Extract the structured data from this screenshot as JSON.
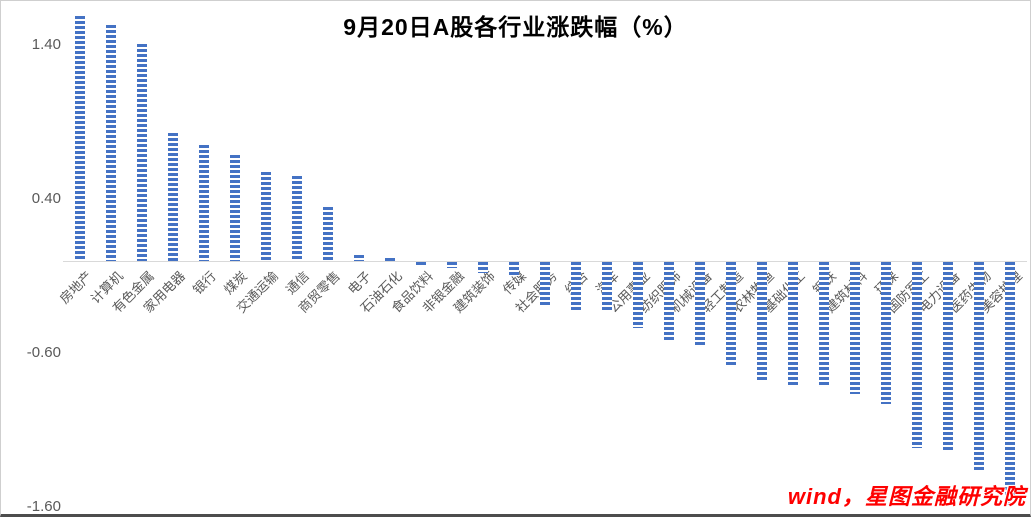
{
  "title": "9月20日A股各行业涨跌幅（%）",
  "watermark": {
    "text": "wind，星图金融研究院"
  },
  "colors": {
    "bar_blue": "#4472C4",
    "stripe_white": "#ffffff",
    "axis_gray": "#d9d9d9",
    "label_gray": "#595959",
    "watermark_red": "#fe0000",
    "title_black": "#000000"
  },
  "chart_data": {
    "type": "bar",
    "title": "9月20日A股各行业涨跌幅（%）",
    "categories": [
      "房地产",
      "计算机",
      "有色金属",
      "家用电器",
      "银行",
      "煤炭",
      "交通运输",
      "通信",
      "商贸零售",
      "电子",
      "石油石化",
      "食品饮料",
      "非银金融",
      "建筑装饰",
      "传媒",
      "社会服务",
      "综合",
      "汽车",
      "公用事业",
      "纺织服饰",
      "机械设备",
      "轻工制造",
      "农林牧渔",
      "基础化工",
      "钢铁",
      "建筑材料",
      "环保",
      "国防军工",
      "电力设备",
      "医药生物",
      "美容护理"
    ],
    "values": [
      1.59,
      1.53,
      1.41,
      0.83,
      0.75,
      0.69,
      0.58,
      0.55,
      0.35,
      0.04,
      0.02,
      -0.03,
      -0.04,
      -0.07,
      -0.09,
      -0.29,
      -0.31,
      -0.32,
      -0.43,
      -0.51,
      -0.54,
      -0.68,
      -0.78,
      -0.8,
      -0.81,
      -0.86,
      -0.92,
      -1.21,
      -1.22,
      -1.35,
      -1.59
    ],
    "xlabel": "",
    "ylabel": "",
    "ylim": [
      -1.65,
      1.65
    ],
    "yticks": [
      1.4,
      0.4,
      -0.6,
      -1.6
    ],
    "ytick_labels": [
      "1.40",
      "0.40",
      "-0.60",
      "-1.60"
    ],
    "grid": false,
    "legend": false,
    "bar_pattern": "horizontal-stripes",
    "category_label_rotation_deg": 45,
    "sort": "descending"
  }
}
